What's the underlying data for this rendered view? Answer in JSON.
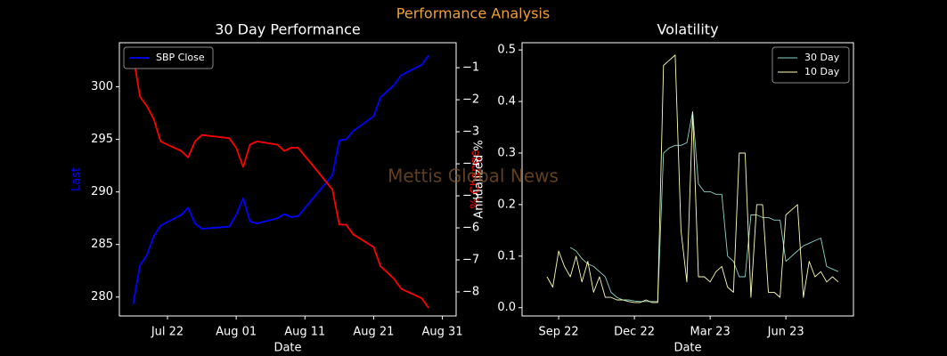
{
  "title": "Performance Analysis",
  "watermark": "Mettis Global News",
  "chart_data": [
    {
      "type": "line",
      "title": "30 Day Performance",
      "xlabel": "Date",
      "ylabel": "Last",
      "y2label": "% Change",
      "x": [
        "Jul 17",
        "Jul 18",
        "Jul 19",
        "Jul 20",
        "Jul 21",
        "Jul 24",
        "Jul 25",
        "Jul 26",
        "Jul 27",
        "Jul 31",
        "Aug 01",
        "Aug 02",
        "Aug 03",
        "Aug 04",
        "Aug 07",
        "Aug 08",
        "Aug 09",
        "Aug 10",
        "Aug 15",
        "Aug 16",
        "Aug 17",
        "Aug 18",
        "Aug 21",
        "Aug 22",
        "Aug 23",
        "Aug 24",
        "Aug 25",
        "Aug 28",
        "Aug 29"
      ],
      "series": [
        {
          "name": "SBP Close",
          "color": "#0000ff",
          "axis": "y",
          "values": [
            279.3,
            283.0,
            284.0,
            285.8,
            286.8,
            287.8,
            288.5,
            287.0,
            286.5,
            286.7,
            287.8,
            289.4,
            287.2,
            287.0,
            287.5,
            287.9,
            287.6,
            287.7,
            291.6,
            294.9,
            295.0,
            295.8,
            297.2,
            299.0,
            299.6,
            300.2,
            301.1,
            302.1,
            303.0
          ]
        },
        {
          "color": "#ff0000",
          "axis": "y2",
          "values": [
            -0.6,
            -1.9,
            -2.2,
            -2.6,
            -3.3,
            -3.6,
            -3.8,
            -3.3,
            -3.1,
            -3.2,
            -3.5,
            -4.1,
            -3.4,
            -3.3,
            -3.4,
            -3.6,
            -3.5,
            -3.5,
            -4.8,
            -5.9,
            -5.9,
            -6.2,
            -6.6,
            -7.2,
            -7.4,
            -7.6,
            -7.9,
            -8.2,
            -8.5
          ]
        }
      ],
      "xlim": [
        "Jul 15",
        "Sep 02"
      ],
      "xticks": [
        "Jul 22",
        "Aug 01",
        "Aug 11",
        "Aug 21",
        "Aug 31"
      ],
      "ylim": [
        278.2,
        304.2
      ],
      "yticks": [
        280,
        285,
        290,
        295,
        300
      ],
      "y2lim": [
        -8.75,
        -0.22
      ],
      "y2ticks": [
        {
          "value": -8,
          "label": "−8"
        },
        {
          "value": -7,
          "label": "−7"
        },
        {
          "value": -6,
          "label": "−6"
        },
        {
          "value": -5,
          "label": "−5"
        },
        {
          "value": -4,
          "label": "−4"
        },
        {
          "value": -3,
          "label": "−3"
        },
        {
          "value": -2,
          "label": "−2"
        },
        {
          "value": -1,
          "label": "−1"
        }
      ],
      "grid": false,
      "legend": "upper left"
    },
    {
      "type": "line",
      "title": "Volatility",
      "xlabel": "Date",
      "ylabel": "Annualized %",
      "categories": [
        null,
        null,
        "Sep 22",
        null,
        null,
        null,
        null,
        null,
        null,
        null,
        null,
        null,
        null,
        null,
        null,
        "Dec 22",
        null,
        null,
        null,
        null,
        null,
        null,
        null,
        null,
        null,
        null,
        null,
        null,
        "Mar 23",
        null,
        null,
        null,
        null,
        null,
        null,
        null,
        null,
        null,
        null,
        null,
        null,
        "Jun 23",
        null,
        null,
        null,
        null,
        null,
        null,
        null,
        null,
        null
      ],
      "series": [
        {
          "name": "30 Day",
          "color": "#8dd3c7",
          "values": [
            null,
            null,
            null,
            null,
            0.117,
            0.11,
            0.095,
            0.085,
            0.08,
            0.07,
            0.06,
            0.03,
            0.02,
            0.015,
            0.015,
            0.013,
            0.012,
            0.012,
            0.012,
            0.012,
            0.3,
            0.31,
            0.315,
            0.315,
            0.32,
            0.38,
            0.24,
            0.225,
            0.225,
            0.22,
            0.22,
            0.1,
            0.09,
            0.06,
            0.06,
            0.18,
            0.18,
            0.175,
            0.175,
            0.17,
            0.17,
            0.09,
            0.1,
            0.11,
            0.12,
            0.125,
            0.13,
            0.135,
            0.08,
            0.075,
            0.07
          ]
        },
        {
          "name": "10 Day",
          "color": "#ffffb3",
          "values": [
            0.06,
            0.04,
            0.11,
            0.08,
            0.06,
            0.1,
            0.05,
            0.09,
            0.03,
            0.06,
            0.02,
            0.02,
            0.015,
            0.015,
            0.012,
            0.01,
            0.01,
            0.015,
            0.01,
            0.01,
            0.47,
            0.48,
            0.49,
            0.15,
            0.05,
            0.38,
            0.06,
            0.06,
            0.05,
            0.07,
            0.08,
            0.04,
            0.03,
            0.3,
            0.3,
            0.02,
            0.2,
            0.2,
            0.03,
            0.03,
            0.02,
            0.18,
            0.19,
            0.2,
            0.02,
            0.09,
            0.06,
            0.07,
            0.05,
            0.06,
            0.05
          ]
        }
      ],
      "ylim": [
        -0.016,
        0.514
      ],
      "yticks": [
        {
          "value": 0,
          "label": "0.0"
        },
        0.1,
        0.2,
        0.3,
        0.4,
        0.5
      ],
      "grid": false,
      "legend": "upper right"
    }
  ]
}
